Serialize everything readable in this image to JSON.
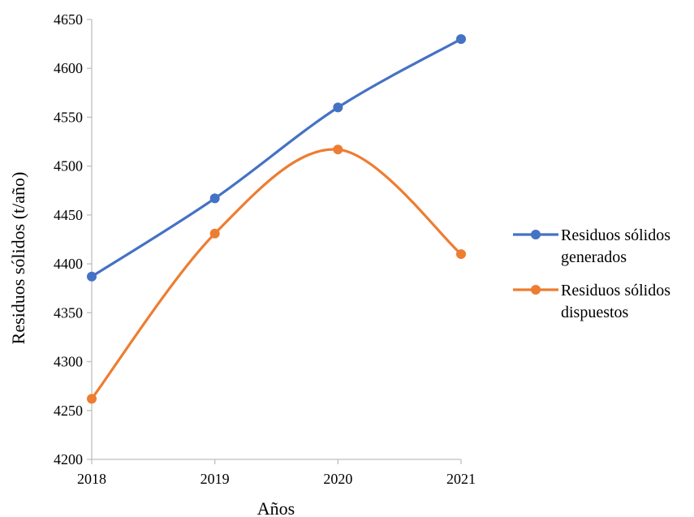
{
  "chart_data": {
    "type": "line",
    "title": "",
    "xlabel": "Años",
    "ylabel": "Residuos sólidos (t/año)",
    "categories": [
      "2018",
      "2019",
      "2020",
      "2021"
    ],
    "yticks": [
      "4200",
      "4250",
      "4300",
      "4350",
      "4400",
      "4450",
      "4500",
      "4550",
      "4600",
      "4650"
    ],
    "ylim": [
      4200,
      4650
    ],
    "grid": false,
    "legend_position": "right",
    "smooth": true,
    "series": [
      {
        "name_lines": [
          "Residuos sólidos",
          "generados"
        ],
        "color": "#4472C4",
        "values": [
          4387,
          4467,
          4560,
          4630
        ]
      },
      {
        "name_lines": [
          "Residuos sólidos",
          "dispuestos"
        ],
        "color": "#ED7D31",
        "values": [
          4262,
          4431,
          4517,
          4410
        ]
      }
    ]
  }
}
